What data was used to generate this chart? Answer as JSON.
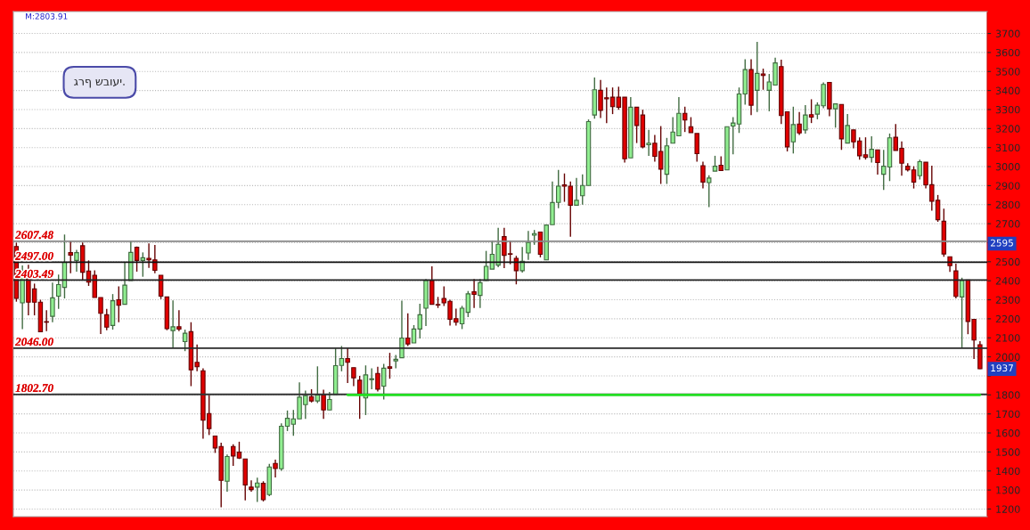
{
  "chart_data": {
    "type": "candlestick",
    "categories": [
      null,
      null,
      null,
      null,
      null,
      null,
      null,
      null,
      null,
      null,
      null,
      null,
      null,
      null,
      null,
      null,
      null,
      null,
      null,
      null,
      null,
      null,
      null,
      null,
      null,
      null,
      null,
      null,
      null,
      null,
      null,
      null,
      null,
      null,
      null,
      null,
      null,
      null,
      null,
      null,
      null,
      null,
      null,
      null,
      null,
      null,
      null,
      null,
      null,
      null,
      null,
      null,
      null,
      null,
      null,
      null,
      null,
      null,
      null,
      null,
      null,
      null,
      null,
      null,
      null,
      null,
      null,
      null,
      null,
      null,
      null,
      null,
      null,
      null,
      null,
      null,
      null,
      null,
      null,
      null,
      null,
      null,
      null,
      null,
      null,
      null,
      null,
      null,
      null,
      null,
      null,
      null,
      null,
      null,
      null,
      null,
      null,
      null,
      null,
      null,
      null,
      null,
      null,
      null,
      null,
      null,
      null,
      null,
      null,
      null,
      null,
      null,
      null,
      null,
      null,
      null,
      null,
      null,
      null,
      null,
      null,
      null,
      null,
      null,
      null,
      null,
      null,
      null,
      null,
      null,
      null,
      null,
      null,
      null,
      null,
      null,
      null,
      null,
      null,
      null,
      null,
      null,
      null,
      null,
      null,
      null,
      null,
      null,
      null,
      null,
      null,
      null,
      null,
      null,
      null,
      null,
      null,
      null,
      null,
      null,
      null
    ],
    "ohlc": [
      [
        2580,
        2600,
        2290,
        2307
      ],
      [
        2284,
        2480,
        2146,
        2448
      ],
      [
        2416,
        2484,
        2218,
        2287
      ],
      [
        2357,
        2385,
        2218,
        2287
      ],
      [
        2287,
        2300,
        2132,
        2132
      ],
      [
        2185,
        2245,
        2135,
        2182
      ],
      [
        2213,
        2390,
        2182,
        2310
      ],
      [
        2319,
        2432,
        2252,
        2380
      ],
      [
        2365,
        2643,
        2307,
        2497
      ],
      [
        2548,
        2612,
        2440,
        2535
      ],
      [
        2507,
        2562,
        2448,
        2548
      ],
      [
        2584,
        2601,
        2401,
        2445
      ],
      [
        2451,
        2507,
        2373,
        2393
      ],
      [
        2429,
        2455,
        2312,
        2312
      ],
      [
        2312,
        2312,
        2120,
        2229
      ],
      [
        2221,
        2252,
        2140,
        2156
      ],
      [
        2165,
        2330,
        2143,
        2295
      ],
      [
        2300,
        2370,
        2182,
        2271
      ],
      [
        2276,
        2497,
        2276,
        2377
      ],
      [
        2401,
        2609,
        2401,
        2549
      ],
      [
        2576,
        2580,
        2448,
        2507
      ],
      [
        2507,
        2549,
        2421,
        2521
      ],
      [
        2518,
        2596,
        2468,
        2510
      ],
      [
        2510,
        2588,
        2440,
        2455
      ],
      [
        2429,
        2429,
        2304,
        2319
      ],
      [
        2315,
        2315,
        2140,
        2148
      ],
      [
        2138,
        2297,
        2046,
        2158
      ],
      [
        2158,
        2245,
        2135,
        2146
      ],
      [
        2080,
        2143,
        2030,
        2124
      ],
      [
        2132,
        2182,
        1846,
        1932
      ],
      [
        1971,
        2065,
        1924,
        1948
      ],
      [
        1927,
        1940,
        1570,
        1667
      ],
      [
        1702,
        1799,
        1589,
        1623
      ],
      [
        1584,
        1584,
        1495,
        1521
      ],
      [
        1529,
        1549,
        1209,
        1351
      ],
      [
        1346,
        1487,
        1291,
        1476
      ],
      [
        1529,
        1541,
        1427,
        1479
      ],
      [
        1499,
        1554,
        1463,
        1468
      ],
      [
        1463,
        1463,
        1245,
        1327
      ],
      [
        1315,
        1351,
        1291,
        1302
      ],
      [
        1315,
        1365,
        1237,
        1337
      ],
      [
        1335,
        1346,
        1240,
        1249
      ],
      [
        1276,
        1437,
        1268,
        1421
      ],
      [
        1440,
        1460,
        1366,
        1413
      ],
      [
        1412,
        1651,
        1401,
        1635
      ],
      [
        1635,
        1718,
        1610,
        1677
      ],
      [
        1646,
        1721,
        1585,
        1674
      ],
      [
        1674,
        1866,
        1674,
        1788
      ],
      [
        1749,
        1823,
        1674,
        1796
      ],
      [
        1791,
        1830,
        1760,
        1768
      ],
      [
        1768,
        1950,
        1757,
        1799
      ],
      [
        1799,
        1827,
        1674,
        1721
      ],
      [
        1721,
        1815,
        1721,
        1776
      ],
      [
        1802,
        2044,
        1802,
        1954
      ],
      [
        1955,
        2057,
        1924,
        1991
      ],
      [
        1991,
        2046,
        1862,
        1971
      ],
      [
        1943,
        1943,
        1846,
        1890
      ],
      [
        1877,
        1900,
        1674,
        1799
      ],
      [
        1784,
        1955,
        1694,
        1905
      ],
      [
        1880,
        1940,
        1830,
        1885
      ],
      [
        1913,
        1948,
        1818,
        1830
      ],
      [
        1846,
        1963,
        1776,
        1940
      ],
      [
        1948,
        2021,
        1885,
        1940
      ],
      [
        1979,
        2010,
        1940,
        1987
      ],
      [
        1995,
        2296,
        1995,
        2099
      ],
      [
        2099,
        2229,
        2057,
        2068
      ],
      [
        2073,
        2167,
        2073,
        2146
      ],
      [
        2146,
        2279,
        2096,
        2221
      ],
      [
        2256,
        2409,
        2162,
        2401
      ],
      [
        2401,
        2476,
        2276,
        2276
      ],
      [
        2275,
        2315,
        2257,
        2272
      ],
      [
        2307,
        2370,
        2268,
        2284
      ],
      [
        2292,
        2300,
        2164,
        2198
      ],
      [
        2201,
        2253,
        2164,
        2182
      ],
      [
        2174,
        2268,
        2146,
        2256
      ],
      [
        2234,
        2346,
        2209,
        2331
      ],
      [
        2342,
        2409,
        2257,
        2328
      ],
      [
        2323,
        2409,
        2257,
        2390
      ],
      [
        2401,
        2557,
        2401,
        2476
      ],
      [
        2461,
        2612,
        2461,
        2539
      ],
      [
        2482,
        2678,
        2471,
        2592
      ],
      [
        2632,
        2678,
        2467,
        2534
      ],
      [
        2542,
        2612,
        2487,
        2539
      ],
      [
        2518,
        2531,
        2381,
        2453
      ],
      [
        2453,
        2578,
        2443,
        2503
      ],
      [
        2546,
        2662,
        2510,
        2601
      ],
      [
        2640,
        2667,
        2589,
        2648
      ],
      [
        2656,
        2656,
        2523,
        2539
      ],
      [
        2510,
        2693,
        2510,
        2693
      ],
      [
        2695,
        2922,
        2695,
        2811
      ],
      [
        2812,
        2983,
        2781,
        2897
      ],
      [
        2904,
        2964,
        2815,
        2897
      ],
      [
        2897,
        2922,
        2632,
        2797
      ],
      [
        2797,
        2940,
        2797,
        2823
      ],
      [
        2847,
        2959,
        2800,
        2901
      ],
      [
        2901,
        3248,
        2901,
        3237
      ],
      [
        3271,
        3468,
        3252,
        3404
      ],
      [
        3401,
        3456,
        3255,
        3296
      ],
      [
        3362,
        3416,
        3229,
        3356
      ],
      [
        3365,
        3416,
        3276,
        3315
      ],
      [
        3365,
        3420,
        3299,
        3312
      ],
      [
        3365,
        3365,
        3021,
        3041
      ],
      [
        3046,
        3366,
        3046,
        3312
      ],
      [
        3312,
        3312,
        3124,
        3216
      ],
      [
        3271,
        3299,
        3096,
        3104
      ],
      [
        3115,
        3193,
        3057,
        3123
      ],
      [
        3123,
        3166,
        3026,
        3054
      ],
      [
        3080,
        3213,
        2909,
        2987
      ],
      [
        2960,
        3151,
        2909,
        3109
      ],
      [
        3123,
        3260,
        3123,
        3182
      ],
      [
        3162,
        3365,
        3162,
        3280
      ],
      [
        3280,
        3315,
        3182,
        3245
      ],
      [
        3210,
        3260,
        3179,
        3179
      ],
      [
        3174,
        3174,
        3026,
        3068
      ],
      [
        3005,
        3026,
        2885,
        2919
      ],
      [
        2916,
        2955,
        2787,
        2940
      ],
      [
        2976,
        3057,
        2976,
        3002
      ],
      [
        3007,
        3054,
        2979,
        2979
      ],
      [
        2983,
        3210,
        2983,
        3210
      ],
      [
        3213,
        3260,
        3065,
        3229
      ],
      [
        3224,
        3416,
        3177,
        3382
      ],
      [
        3382,
        3565,
        3326,
        3510
      ],
      [
        3510,
        3565,
        3271,
        3323
      ],
      [
        3401,
        3656,
        3287,
        3490
      ],
      [
        3487,
        3515,
        3404,
        3479
      ],
      [
        3401,
        3487,
        3291,
        3445
      ],
      [
        3429,
        3573,
        3429,
        3545
      ],
      [
        3526,
        3562,
        3224,
        3268
      ],
      [
        3288,
        3288,
        3080,
        3104
      ],
      [
        3130,
        3315,
        3069,
        3221
      ],
      [
        3224,
        3287,
        3166,
        3177
      ],
      [
        3193,
        3323,
        3174,
        3271
      ],
      [
        3273,
        3354,
        3229,
        3260
      ],
      [
        3276,
        3338,
        3249,
        3323
      ],
      [
        3320,
        3443,
        3307,
        3432
      ],
      [
        3443,
        3443,
        3265,
        3304
      ],
      [
        3304,
        3330,
        3205,
        3330
      ],
      [
        3327,
        3327,
        3088,
        3146
      ],
      [
        3124,
        3276,
        3124,
        3216
      ],
      [
        3193,
        3193,
        3096,
        3130
      ],
      [
        3135,
        3154,
        3037,
        3057
      ],
      [
        3062,
        3154,
        3037,
        3049
      ],
      [
        3049,
        3159,
        3021,
        3091
      ],
      [
        3088,
        3088,
        2958,
        3021
      ],
      [
        2960,
        3088,
        2877,
        3002
      ],
      [
        2998,
        3174,
        2924,
        3151
      ],
      [
        3154,
        3224,
        3085,
        3085
      ],
      [
        3096,
        3132,
        2952,
        3018
      ],
      [
        3002,
        3018,
        2974,
        2983
      ],
      [
        2983,
        3002,
        2885,
        2919
      ],
      [
        2952,
        3037,
        2932,
        3026
      ],
      [
        3023,
        3023,
        2885,
        2904
      ],
      [
        2905,
        3005,
        2768,
        2818
      ],
      [
        2823,
        2851,
        2710,
        2721
      ],
      [
        2713,
        2779,
        2526,
        2541
      ],
      [
        2526,
        2526,
        2447,
        2479
      ],
      [
        2452,
        2490,
        2307,
        2318
      ],
      [
        2315,
        2416,
        2046,
        2401
      ],
      [
        2404,
        2404,
        2119,
        2186
      ],
      [
        2197,
        2197,
        1989,
        2088
      ],
      [
        2064,
        2083,
        1936,
        1937
      ]
    ],
    "colors": [
      "#e00000",
      "#90ee90",
      "#e00000",
      "#e00000",
      "#e00000",
      "#e00000",
      "#90ee90",
      "#90ee90",
      "#90ee90",
      "#e00000",
      "#90ee90",
      "#e00000",
      "#e00000",
      "#e00000",
      "#e00000",
      "#e00000",
      "#90ee90",
      "#e00000",
      "#90ee90",
      "#90ee90",
      "#e00000",
      "#90ee90",
      "#e00000",
      "#e00000",
      "#e00000",
      "#e00000",
      "#90ee90",
      "#e00000",
      "#90ee90",
      "#e00000",
      "#e00000",
      "#e00000",
      "#e00000",
      "#e00000",
      "#e00000",
      "#90ee90",
      "#e00000",
      "#e00000",
      "#e00000",
      "#e00000",
      "#90ee90",
      "#e00000",
      "#90ee90",
      "#e00000",
      "#90ee90",
      "#90ee90",
      "#90ee90",
      "#90ee90",
      "#90ee90",
      "#e00000",
      "#90ee90",
      "#e00000",
      "#90ee90",
      "#90ee90",
      "#90ee90",
      "#e00000",
      "#e00000",
      "#e00000",
      "#90ee90",
      "#90ee90",
      "#e00000",
      "#90ee90",
      "#e00000",
      "#90ee90",
      "#90ee90",
      "#e00000",
      "#90ee90",
      "#90ee90",
      "#90ee90",
      "#e00000",
      "#e00000",
      "#e00000",
      "#e00000",
      "#e00000",
      "#90ee90",
      "#90ee90",
      "#e00000",
      "#90ee90",
      "#90ee90",
      "#90ee90",
      "#90ee90",
      "#e00000",
      "#e00000",
      "#e00000",
      "#90ee90",
      "#90ee90",
      "#90ee90",
      "#e00000",
      "#90ee90",
      "#90ee90",
      "#90ee90",
      "#e00000",
      "#e00000",
      "#90ee90",
      "#90ee90",
      "#90ee90",
      "#90ee90",
      "#e00000",
      "#e00000",
      "#e00000",
      "#e00000",
      "#e00000",
      "#90ee90",
      "#e00000",
      "#e00000",
      "#90ee90",
      "#e00000",
      "#e00000",
      "#90ee90",
      "#90ee90",
      "#90ee90",
      "#e00000",
      "#e00000",
      "#e00000",
      "#e00000",
      "#90ee90",
      "#90ee90",
      "#e00000",
      "#90ee90",
      "#90ee90",
      "#90ee90",
      "#90ee90",
      "#e00000",
      "#90ee90",
      "#e00000",
      "#90ee90",
      "#90ee90",
      "#e00000",
      "#e00000",
      "#90ee90",
      "#e00000",
      "#90ee90",
      "#e00000",
      "#90ee90",
      "#90ee90",
      "#e00000",
      "#90ee90",
      "#e00000",
      "#90ee90",
      "#e00000",
      "#e00000",
      "#e00000",
      "#90ee90",
      "#e00000",
      "#90ee90",
      "#90ee90",
      "#e00000",
      "#e00000",
      "#e00000",
      "#e00000",
      "#90ee90",
      "#e00000",
      "#e00000",
      "#e00000",
      "#e00000",
      "#e00000",
      "#e00000",
      "#90ee90",
      "#e00000",
      "#e00000",
      "#e00000"
    ],
    "series": [
      {
        "type": "line",
        "color": "#22dd22",
        "values": [
          null,
          null,
          null,
          null,
          null,
          null,
          null,
          null,
          null,
          null,
          null,
          null,
          null,
          null,
          null,
          null,
          null,
          null,
          null,
          null,
          null,
          null,
          null,
          null,
          null,
          null,
          null,
          null,
          null,
          null,
          null,
          null,
          null,
          null,
          null,
          null,
          null,
          null,
          null,
          null,
          null,
          null,
          null,
          null,
          null,
          null,
          null,
          null,
          null,
          null,
          null,
          null,
          null,
          null,
          null,
          1800,
          1800,
          1800,
          1800,
          1800,
          1800,
          1800,
          1800,
          1800,
          1800,
          1800,
          1800,
          1800,
          1800,
          1800,
          1800,
          1800,
          1800,
          1800,
          1800,
          1800,
          1800,
          1800,
          1800,
          1800,
          1800,
          1800,
          1800,
          1800,
          1800,
          1800,
          1800,
          1800,
          1800,
          1800,
          1800,
          1800,
          1800,
          1800,
          1800,
          1800,
          1800,
          1800,
          1800,
          1800,
          1800,
          1800,
          1800,
          1800,
          1800,
          1800,
          1800,
          1800,
          1800,
          1800,
          1800,
          1800,
          1800,
          1800,
          1800,
          1800,
          1800,
          1800,
          1800,
          1800,
          1800,
          1800,
          1800,
          1800,
          1800,
          1800,
          1800,
          1800,
          1800,
          1800,
          1800,
          1800,
          1800,
          1800,
          1800,
          1800,
          1800,
          1800,
          1800,
          1800,
          1800,
          1800,
          1800,
          1800,
          1800,
          1800,
          1800,
          1800,
          1800,
          1800,
          1800,
          1800,
          1800,
          1800,
          1800,
          1800,
          1800,
          1800,
          1800,
          1800,
          1800
        ]
      }
    ],
    "ylim": [
      1160,
      3815
    ],
    "yticks": [
      1200,
      1300,
      1400,
      1500,
      1600,
      1700,
      1800,
      {
        "value": 1900,
        "label": null
      },
      2000,
      2100,
      2200,
      2300,
      2400,
      2500,
      {
        "value": 2600,
        "label": null
      },
      2700,
      2800,
      2900,
      3000,
      3100,
      3200,
      3300,
      3400,
      3500,
      3600,
      3700
    ],
    "ref_lines": [
      {
        "axis": "y",
        "value": 2607.48,
        "label": "2607.48",
        "color": "#888888"
      },
      {
        "axis": "y",
        "value": 2497.0,
        "label": "2497.00",
        "color": "#111111"
      },
      {
        "axis": "y",
        "value": 2403.49,
        "label": "2403.49",
        "color": "#222222"
      },
      {
        "axis": "y",
        "value": 2046.0,
        "label": "2046.00",
        "color": "#2a2a2a"
      },
      {
        "axis": "y",
        "value": 1802.7,
        "label": "1802.70",
        "color": "#333333"
      }
    ],
    "annotations": [
      "M:2803.91",
      "גרף שבועי.",
      {
        "text": "2595",
        "y": 2595
      },
      {
        "text": "1937",
        "y": 1937
      }
    ],
    "grid": "y",
    "tick_labels": "y",
    "legend": false
  }
}
